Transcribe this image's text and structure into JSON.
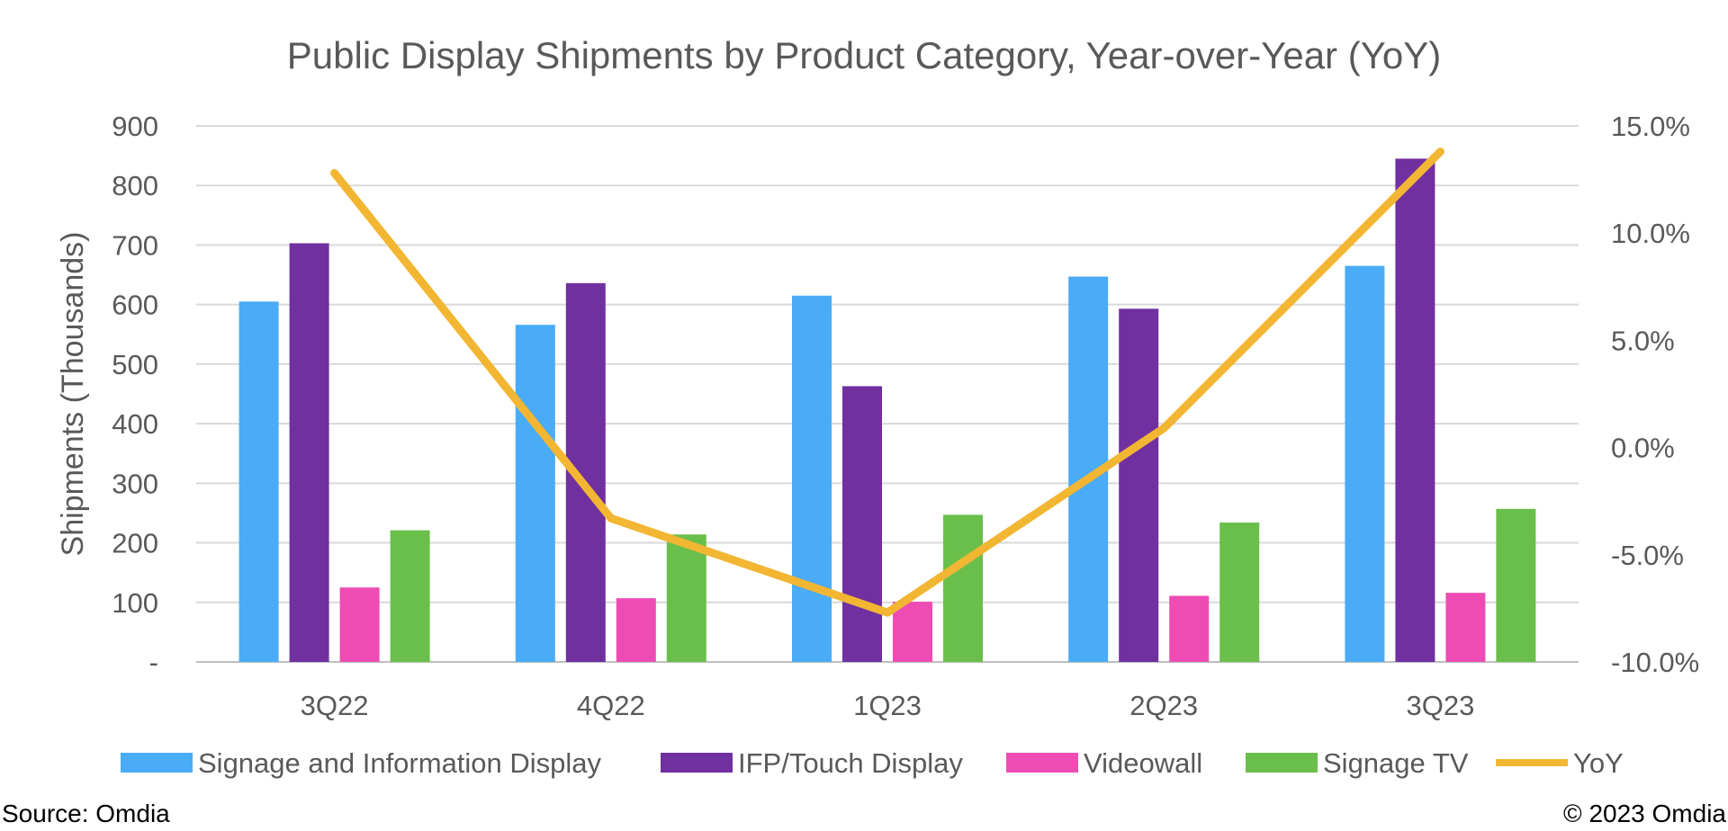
{
  "chart_data": {
    "type": "bar",
    "title": "Public Display Shipments by Product Category, Year-over-Year (YoY)",
    "ylabel": "Shipments (Thousands)",
    "xlabel": "",
    "categories": [
      "3Q22",
      "4Q22",
      "1Q23",
      "2Q23",
      "3Q23"
    ],
    "ylim": [
      0,
      900
    ],
    "y_ticks": [
      0,
      100,
      200,
      300,
      400,
      500,
      600,
      700,
      800,
      900
    ],
    "y_tick_labels": [
      "-",
      "100",
      "200",
      "300",
      "400",
      "500",
      "600",
      "700",
      "800",
      "900"
    ],
    "y2lim": [
      -0.1,
      0.15
    ],
    "y2_ticks": [
      -0.1,
      -0.05,
      0.0,
      0.05,
      0.1,
      0.15
    ],
    "y2_tick_labels": [
      "-10.0%",
      "-5.0%",
      "0.0%",
      "5.0%",
      "10.0%",
      "15.0%"
    ],
    "grid": true,
    "legend_position": "bottom",
    "series": [
      {
        "name": "Signage and Information Display",
        "kind": "bar",
        "color": "#4AABF7",
        "values": [
          605,
          566,
          615,
          647,
          665
        ]
      },
      {
        "name": "IFP/Touch Display",
        "kind": "bar",
        "color": "#7030A0",
        "values": [
          703,
          636,
          463,
          593,
          845
        ]
      },
      {
        "name": "Videowall",
        "kind": "bar",
        "color": "#EE4CB4",
        "values": [
          125,
          107,
          101,
          111,
          116
        ]
      },
      {
        "name": "Signage TV",
        "kind": "bar",
        "color": "#6ABF4B",
        "values": [
          221,
          214,
          247,
          234,
          257
        ]
      },
      {
        "name": "YoY",
        "kind": "line",
        "axis": "right",
        "color": "#F2B632",
        "values": [
          0.128,
          -0.033,
          -0.077,
          0.009,
          0.138
        ]
      }
    ]
  },
  "footer": {
    "source": "Source: Omdia",
    "copyright": "© 2023 Omdia"
  }
}
